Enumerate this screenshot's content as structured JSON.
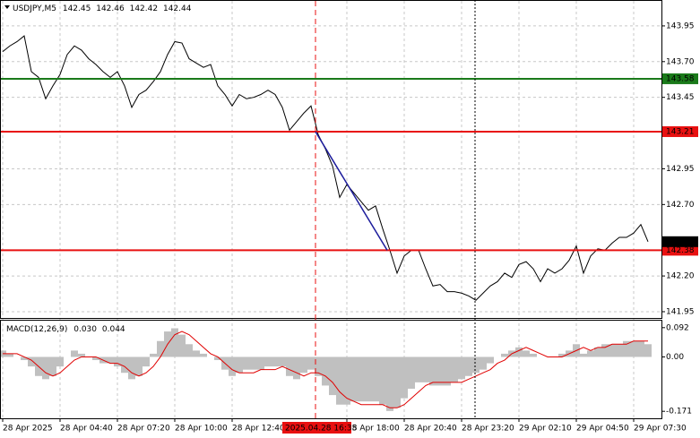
{
  "chart_data": [
    {
      "type": "line",
      "title": "USDJPY,M5",
      "ohlc": [
        142.45,
        142.46,
        142.42,
        142.44
      ],
      "color": "#000000",
      "categories": [
        "28 Apr 2025",
        null,
        null,
        null,
        null,
        null,
        null,
        null,
        "28 Apr 04:40",
        null,
        null,
        null,
        null,
        null,
        null,
        null,
        "28 Apr 07:20",
        null,
        null,
        null,
        null,
        null,
        null,
        null,
        "28 Apr 10:00",
        null,
        null,
        null,
        null,
        null,
        null,
        null,
        "28 Apr 12:40",
        null,
        null,
        null,
        null,
        null,
        null,
        null,
        null,
        null,
        null,
        null,
        null,
        null,
        null,
        null,
        "28 Apr 18:00",
        null,
        null,
        null,
        null,
        null,
        null,
        null,
        "28 Apr 20:40",
        null,
        null,
        null,
        null,
        null,
        null,
        null,
        "28 Apr 23:20",
        null,
        null,
        null,
        null,
        null,
        null,
        null,
        "29 Apr 02:10",
        null,
        null,
        null,
        null,
        null,
        null,
        null,
        "29 Apr 04:50",
        null,
        null,
        null,
        null,
        null,
        null,
        null,
        "29 Apr 07:30",
        null,
        null
      ],
      "values": [
        143.77,
        143.81,
        143.84,
        143.88,
        143.63,
        143.59,
        143.44,
        143.53,
        143.61,
        143.75,
        143.81,
        143.78,
        143.72,
        143.68,
        143.63,
        143.59,
        143.63,
        143.53,
        143.38,
        143.47,
        143.5,
        143.56,
        143.63,
        143.75,
        143.84,
        143.83,
        143.72,
        143.69,
        143.66,
        143.68,
        143.53,
        143.47,
        143.39,
        143.47,
        143.44,
        143.45,
        143.47,
        143.5,
        143.47,
        143.38,
        143.22,
        143.28,
        143.34,
        143.39,
        143.19,
        143.09,
        142.97,
        142.75,
        142.84,
        142.78,
        142.72,
        142.66,
        142.69,
        142.53,
        142.38,
        142.22,
        142.34,
        142.38,
        142.38,
        142.25,
        142.13,
        142.14,
        142.09,
        142.09,
        142.08,
        142.06,
        142.03,
        142.08,
        142.13,
        142.16,
        142.22,
        142.19,
        142.28,
        142.3,
        142.25,
        142.16,
        142.25,
        142.22,
        142.25,
        142.31,
        142.41,
        142.22,
        142.34,
        142.39,
        142.38,
        142.43,
        142.47,
        142.47,
        142.5,
        142.56,
        142.44
      ],
      "ylim": [
        141.906,
        144.125
      ],
      "yticks": [
        {
          "value": 143.95,
          "label": "143.95"
        },
        {
          "value": 143.7,
          "label": "143.70"
        },
        {
          "value": 143.45,
          "label": "143.45"
        },
        {
          "value": 142.95,
          "label": "142.95"
        },
        {
          "value": 142.7,
          "label": "142.70"
        },
        {
          "value": 142.2,
          "label": "142.20"
        },
        {
          "value": 141.95,
          "label": "141.95"
        }
      ],
      "grid": true,
      "levels": [
        {
          "value": 143.58,
          "color": "#1a7a1a"
        },
        {
          "value": 143.21,
          "color": "#e81010"
        },
        {
          "value": 142.38,
          "color": "#e81010"
        }
      ],
      "trend_line": {
        "values": [
          143.21,
          142.38
        ],
        "color": "#1c1c9c"
      },
      "crosshair_label": "2025.04.28 16:35"
    },
    {
      "type": "macd",
      "title": "MACD(12,26,9)",
      "readout": [
        "0.030",
        "0.044"
      ],
      "histogram": {
        "color": "#c0c0c0",
        "values": [
          0.02,
          0.01,
          0.0,
          -0.01,
          -0.03,
          -0.06,
          -0.07,
          -0.06,
          -0.03,
          0.0,
          0.02,
          0.01,
          0.0,
          -0.01,
          -0.02,
          -0.02,
          -0.03,
          -0.05,
          -0.07,
          -0.06,
          -0.03,
          0.01,
          0.05,
          0.08,
          0.09,
          0.07,
          0.04,
          0.02,
          0.01,
          0.0,
          -0.01,
          -0.04,
          -0.06,
          -0.05,
          -0.04,
          -0.04,
          -0.04,
          -0.03,
          -0.03,
          -0.03,
          -0.06,
          -0.07,
          -0.05,
          -0.04,
          -0.06,
          -0.09,
          -0.12,
          -0.15,
          -0.15,
          -0.14,
          -0.14,
          -0.14,
          -0.14,
          -0.15,
          -0.17,
          -0.16,
          -0.13,
          -0.1,
          -0.08,
          -0.08,
          -0.09,
          -0.09,
          -0.09,
          -0.08,
          -0.07,
          -0.06,
          -0.05,
          -0.04,
          -0.02,
          0.0,
          0.01,
          0.02,
          0.03,
          0.02,
          0.01,
          0.0,
          0.0,
          0.0,
          0.01,
          0.02,
          0.04,
          0.01,
          0.02,
          0.03,
          0.04,
          0.04,
          0.04,
          0.05,
          0.05,
          0.05,
          0.04
        ]
      },
      "signal": {
        "color": "#e00000",
        "values": [
          0.01,
          0.01,
          0.01,
          0.0,
          -0.01,
          -0.03,
          -0.05,
          -0.06,
          -0.05,
          -0.03,
          -0.01,
          0.0,
          0.0,
          0.0,
          -0.01,
          -0.02,
          -0.02,
          -0.03,
          -0.05,
          -0.06,
          -0.05,
          -0.03,
          0.0,
          0.04,
          0.07,
          0.08,
          0.07,
          0.05,
          0.03,
          0.01,
          0.0,
          -0.02,
          -0.04,
          -0.05,
          -0.05,
          -0.05,
          -0.04,
          -0.04,
          -0.04,
          -0.03,
          -0.04,
          -0.05,
          -0.06,
          -0.05,
          -0.05,
          -0.06,
          -0.08,
          -0.11,
          -0.13,
          -0.14,
          -0.15,
          -0.15,
          -0.15,
          -0.15,
          -0.16,
          -0.16,
          -0.15,
          -0.13,
          -0.11,
          -0.09,
          -0.08,
          -0.08,
          -0.08,
          -0.08,
          -0.08,
          -0.07,
          -0.06,
          -0.05,
          -0.04,
          -0.02,
          -0.01,
          0.01,
          0.02,
          0.03,
          0.02,
          0.01,
          0.0,
          0.0,
          0.0,
          0.01,
          0.02,
          0.03,
          0.02,
          0.03,
          0.03,
          0.04,
          0.04,
          0.04,
          0.05,
          0.05,
          0.05
        ]
      },
      "ylim": [
        -0.193,
        0.114
      ],
      "yticks": [
        0.092,
        {
          "value": 0,
          "label": "0.00"
        },
        -0.171
      ]
    }
  ]
}
